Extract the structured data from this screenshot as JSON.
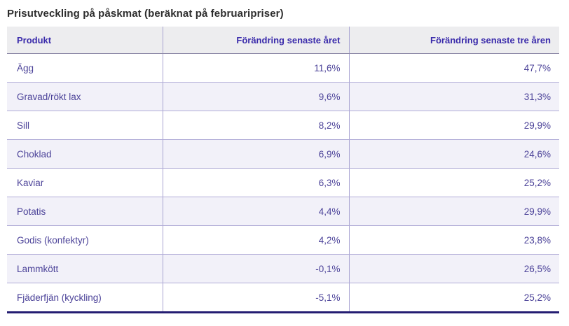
{
  "page": {
    "title": "Prisutveckling på påskmat (beräknat på februaripriser)"
  },
  "table": {
    "columns": [
      "Produkt",
      "Förändring senaste året",
      "Förändring senaste tre åren"
    ],
    "rows": [
      {
        "product": "Ägg",
        "one_year": "11,6%",
        "three_year": "47,7%"
      },
      {
        "product": "Gravad/rökt lax",
        "one_year": "9,6%",
        "three_year": "31,3%"
      },
      {
        "product": "Sill",
        "one_year": "8,2%",
        "three_year": "29,9%"
      },
      {
        "product": "Choklad",
        "one_year": "6,9%",
        "three_year": "24,6%"
      },
      {
        "product": "Kaviar",
        "one_year": "6,3%",
        "three_year": "25,2%"
      },
      {
        "product": "Potatis",
        "one_year": "4,4%",
        "three_year": "29,9%"
      },
      {
        "product": "Godis (konfektyr)",
        "one_year": "4,2%",
        "three_year": "23,8%"
      },
      {
        "product": "Lammkött",
        "one_year": "-0,1%",
        "three_year": "26,5%"
      },
      {
        "product": "Fjäderfjän (kyckling)",
        "one_year": "-5,1%",
        "three_year": "25,2%"
      }
    ]
  },
  "colors": {
    "header_text": "#3a2bab",
    "cell_text": "#4c4399",
    "header_background": "#ededef",
    "alt_row_background": "#f2f1f9",
    "grid_line": "#aaa5d2",
    "bottom_border": "#241d72",
    "title_text": "#2d2d2d"
  },
  "chart_data": {
    "type": "table",
    "title": "Prisutveckling på påskmat (beräknat på februaripriser)",
    "columns": [
      "Produkt",
      "Förändring senaste året",
      "Förändring senaste tre åren"
    ],
    "rows": [
      [
        "Ägg",
        "11,6%",
        "47,7%"
      ],
      [
        "Gravad/rökt lax",
        "9,6%",
        "31,3%"
      ],
      [
        "Sill",
        "8,2%",
        "29,9%"
      ],
      [
        "Choklad",
        "6,9%",
        "24,6%"
      ],
      [
        "Kaviar",
        "6,3%",
        "25,2%"
      ],
      [
        "Potatis",
        "4,4%",
        "29,9%"
      ],
      [
        "Godis (konfektyr)",
        "4,2%",
        "23,8%"
      ],
      [
        "Lammkött",
        "-0,1%",
        "26,5%"
      ],
      [
        "Fjäderfjän (kyckling)",
        "-5,1%",
        "25,2%"
      ]
    ],
    "series": [
      {
        "name": "Förändring senaste året (%)",
        "values": [
          11.6,
          9.6,
          8.2,
          6.9,
          6.3,
          4.4,
          4.2,
          -0.1,
          -5.1
        ]
      },
      {
        "name": "Förändring senaste tre åren (%)",
        "values": [
          47.7,
          31.3,
          29.9,
          24.6,
          25.2,
          29.9,
          23.8,
          26.5,
          25.2
        ]
      }
    ],
    "categories": [
      "Ägg",
      "Gravad/rökt lax",
      "Sill",
      "Choklad",
      "Kaviar",
      "Potatis",
      "Godis (konfektyr)",
      "Lammkött",
      "Fjäderfjän (kyckling)"
    ]
  }
}
